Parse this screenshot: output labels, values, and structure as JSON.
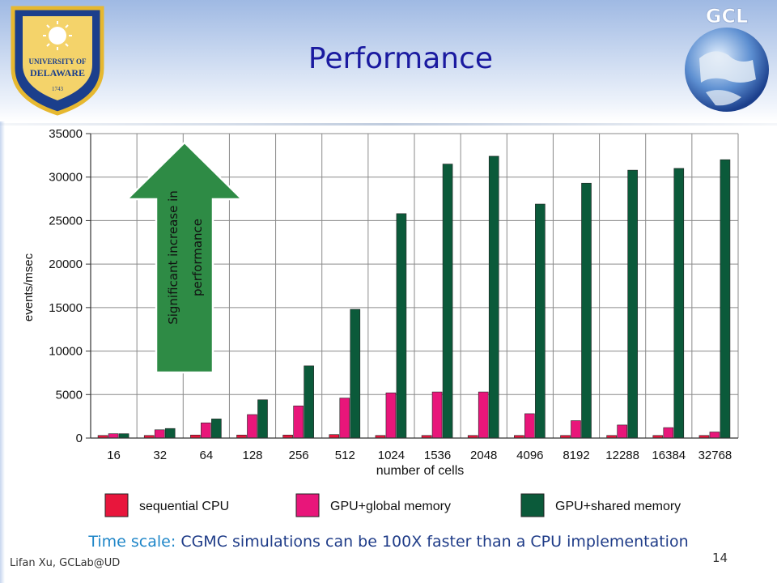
{
  "slide": {
    "title": "Performance",
    "caption_prefix": "Time scale:",
    "caption_text": " CGMC simulations can be 100X faster than a CPU implementation",
    "author": "Lifan Xu, GCLab@UD",
    "page_number": "14"
  },
  "logos": {
    "university": {
      "line1": "UNIVERSITY OF",
      "line2": "DELAWARE",
      "year": "1743"
    },
    "lab": {
      "text": "GCL"
    }
  },
  "annotation": {
    "text_line1": "Significant increase in",
    "text_line2": "performance",
    "arrow_color": "#2e8b45"
  },
  "chart_data": {
    "type": "bar",
    "xlabel": "number of cells",
    "ylabel": "events/msec",
    "ylim": [
      0,
      35000
    ],
    "yticks": [
      0,
      5000,
      10000,
      15000,
      20000,
      25000,
      30000,
      35000
    ],
    "grid": true,
    "legend_position": "bottom",
    "categories": [
      "16",
      "32",
      "64",
      "128",
      "256",
      "512",
      "1024",
      "1536",
      "2048",
      "4096",
      "8192",
      "12288",
      "16384",
      "32768"
    ],
    "series": [
      {
        "name": "sequential CPU",
        "color": "#e8163c",
        "values": [
          300,
          300,
          350,
          350,
          350,
          400,
          300,
          300,
          300,
          300,
          300,
          300,
          300,
          300
        ]
      },
      {
        "name": "GPU+global memory",
        "color": "#e8167a",
        "values": [
          500,
          950,
          1750,
          2700,
          3700,
          4600,
          5200,
          5300,
          5300,
          2800,
          2000,
          1500,
          1200,
          700
        ]
      },
      {
        "name": "GPU+shared memory",
        "color": "#0b5a3a",
        "values": [
          500,
          1100,
          2200,
          4400,
          8300,
          14800,
          25800,
          31500,
          32400,
          26900,
          29300,
          30800,
          31000,
          32000
        ]
      }
    ]
  }
}
